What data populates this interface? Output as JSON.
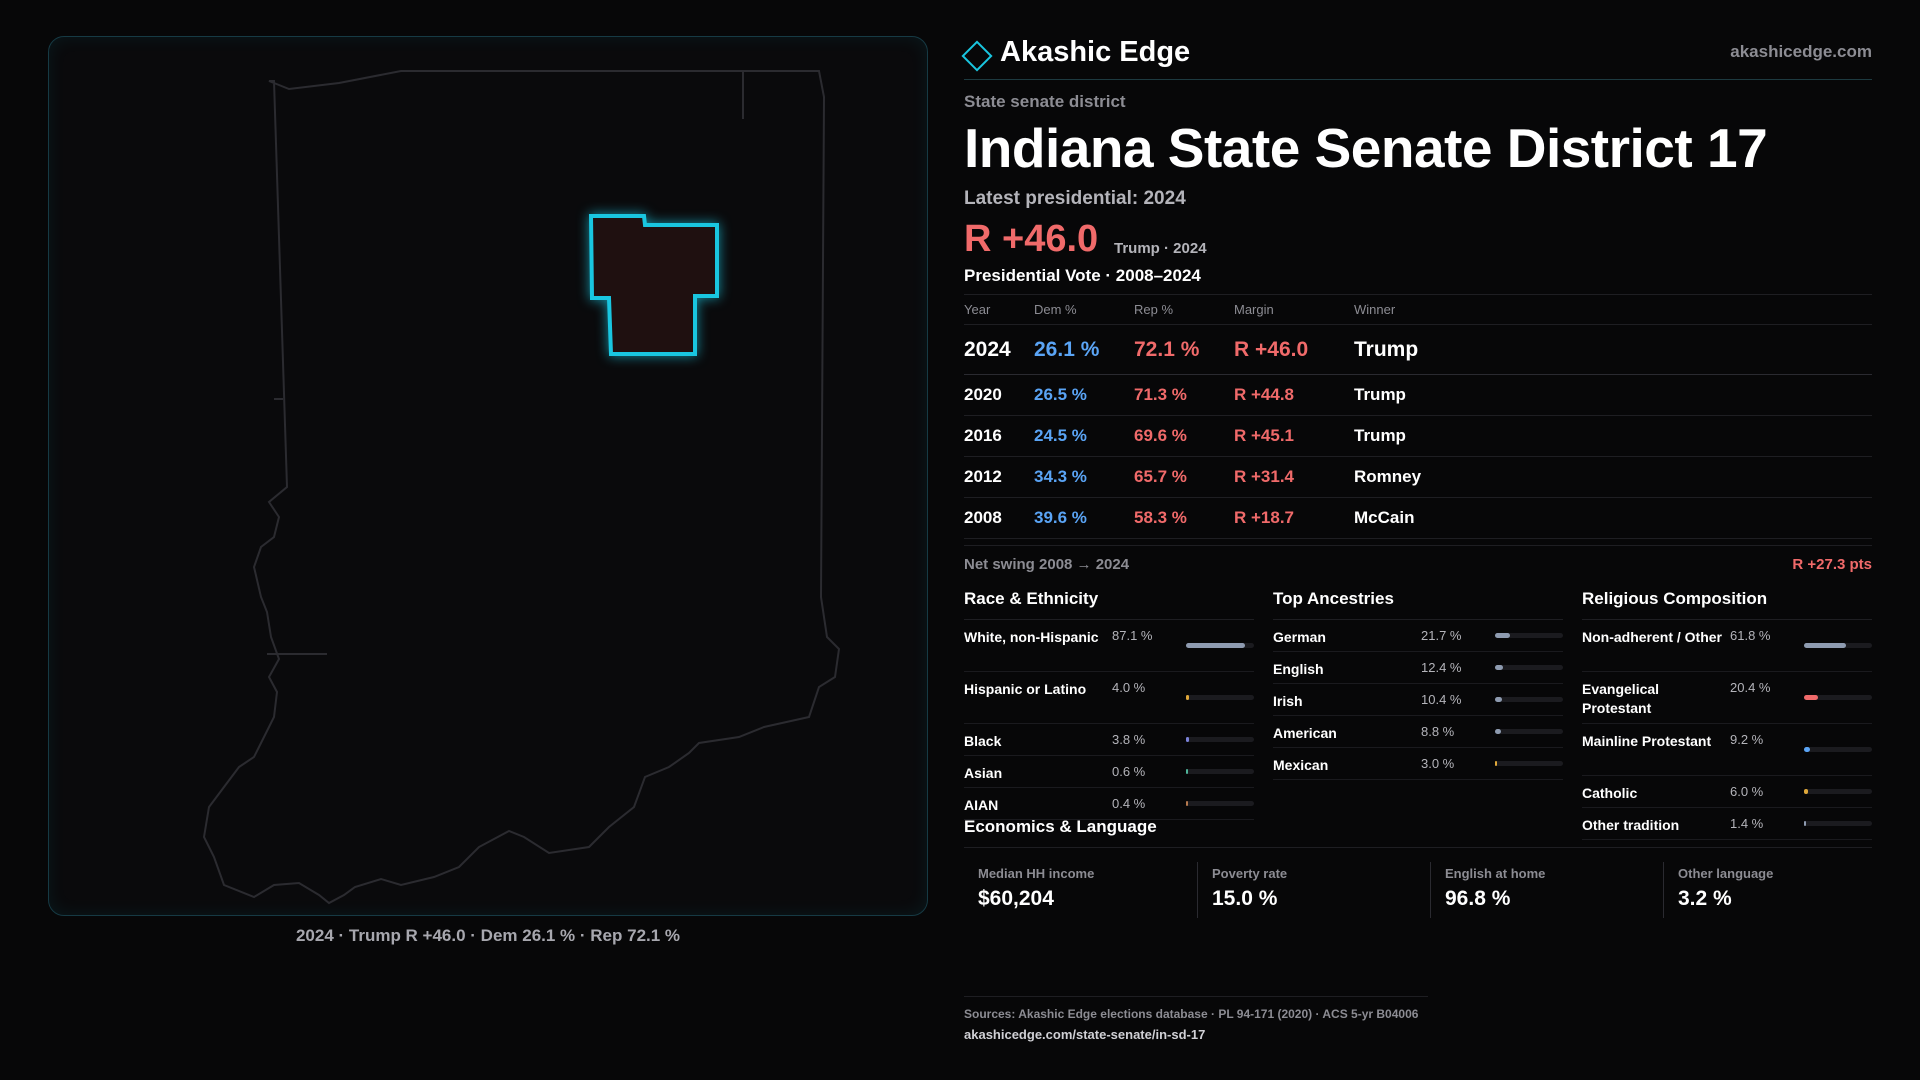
{
  "brand": {
    "name": "Akashic Edge",
    "url": "akashicedge.com"
  },
  "district": {
    "type": "State senate district",
    "title": "Indiana State Senate District 17",
    "latest_label": "Latest presidential: 2024",
    "headline_margin": "R +46.0",
    "headline_note": "Trump · 2024"
  },
  "vote_table": {
    "title": "Presidential Vote · 2008–2024",
    "headers": [
      "Year",
      "Dem %",
      "Rep %",
      "Margin",
      "Winner"
    ],
    "rows": [
      {
        "year": "2024",
        "dem": "26.1 %",
        "rep": "72.1 %",
        "margin": "R +46.0",
        "winner": "Trump"
      },
      {
        "year": "2020",
        "dem": "26.5 %",
        "rep": "71.3 %",
        "margin": "R +44.8",
        "winner": "Trump"
      },
      {
        "year": "2016",
        "dem": "24.5 %",
        "rep": "69.6 %",
        "margin": "R +45.1",
        "winner": "Trump"
      },
      {
        "year": "2012",
        "dem": "34.3 %",
        "rep": "65.7 %",
        "margin": "R +31.4",
        "winner": "Romney"
      },
      {
        "year": "2008",
        "dem": "39.6 %",
        "rep": "58.3 %",
        "margin": "R +18.7",
        "winner": "McCain"
      }
    ],
    "swing_label": "Net swing 2008 → 2024",
    "swing_value": "R +27.3 pts"
  },
  "race": {
    "title": "Race & Ethnicity",
    "items": [
      {
        "label": "White, non-Hispanic",
        "value": "87.1 %",
        "pct": 87.1,
        "color": "#8e9bb0"
      },
      {
        "label": "Hispanic or Latino",
        "value": "4.0 %",
        "pct": 4.0,
        "color": "#e0a83a"
      },
      {
        "label": "Black",
        "value": "3.8 %",
        "pct": 3.8,
        "color": "#7b82d9"
      },
      {
        "label": "Asian",
        "value": "0.6 %",
        "pct": 0.6,
        "color": "#4fb59a"
      },
      {
        "label": "AIAN",
        "value": "0.4 %",
        "pct": 0.4,
        "color": "#b5794f"
      }
    ]
  },
  "ancestry": {
    "title": "Top Ancestries",
    "items": [
      {
        "label": "German",
        "value": "21.7 %",
        "pct": 21.7,
        "color": "#8e9bb0"
      },
      {
        "label": "English",
        "value": "12.4 %",
        "pct": 12.4,
        "color": "#8e9bb0"
      },
      {
        "label": "Irish",
        "value": "10.4 %",
        "pct": 10.4,
        "color": "#8e9bb0"
      },
      {
        "label": "American",
        "value": "8.8 %",
        "pct": 8.8,
        "color": "#8e9bb0"
      },
      {
        "label": "Mexican",
        "value": "3.0 %",
        "pct": 3.0,
        "color": "#e0a83a"
      }
    ]
  },
  "religion": {
    "title": "Religious Composition",
    "items": [
      {
        "label": "Non-adherent / Other",
        "value": "61.8 %",
        "pct": 61.8,
        "color": "#8e9bb0"
      },
      {
        "label": "Evangelical Protestant",
        "value": "20.4 %",
        "pct": 20.4,
        "color": "#f06a6a"
      },
      {
        "label": "Mainline Protestant",
        "value": "9.2 %",
        "pct": 9.2,
        "color": "#5aa4f5"
      },
      {
        "label": "Catholic",
        "value": "6.0 %",
        "pct": 6.0,
        "color": "#e0a83a"
      },
      {
        "label": "Other tradition",
        "value": "1.4 %",
        "pct": 1.4,
        "color": "#8e9bb0"
      }
    ]
  },
  "economics": {
    "title": "Economics & Language",
    "items": [
      {
        "label": "Median HH income",
        "value": "$60,204"
      },
      {
        "label": "Poverty rate",
        "value": "15.0 %"
      },
      {
        "label": "English at home",
        "value": "96.8 %"
      },
      {
        "label": "Other language",
        "value": "3.2 %"
      }
    ]
  },
  "map": {
    "caption": "2024 · Trump R +46.0 · Dem 26.1 % · Rep 72.1 %",
    "district_fill": "#1f1010",
    "district_stroke": "#19c6e0",
    "state_stroke": "#2b2b30"
  },
  "sources": {
    "text": "Sources: Akashic Edge elections database · PL 94-171 (2020) · ACS 5-yr B04006",
    "url": "akashicedge.com/state-senate/in-sd-17"
  }
}
